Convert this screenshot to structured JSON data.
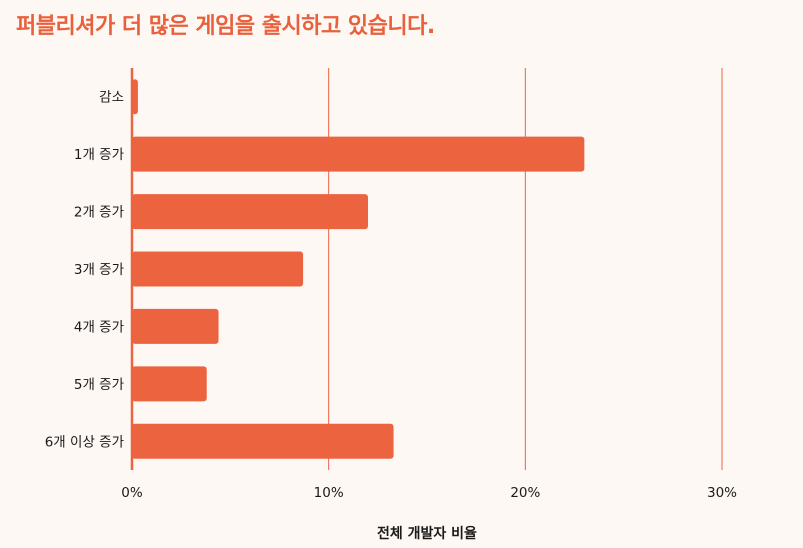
{
  "colors": {
    "accent": "#EC6340",
    "background": "#FDF8F4",
    "title": "#E8603C",
    "text": "#1a1a1a"
  },
  "chart_data": {
    "type": "bar",
    "orientation": "horizontal",
    "title": "퍼블리셔가 더 많은 게임을 출시하고 있습니다.",
    "xlabel": "전체 개발자 비율",
    "ylabel": "",
    "categories": [
      "감소",
      "1개 증가",
      "2개 증가",
      "3개 증가",
      "4개 증가",
      "5개 증가",
      "6개 이상 증가"
    ],
    "values": [
      0.3,
      23,
      12,
      8.7,
      4.4,
      3.8,
      13.3
    ],
    "xlim": [
      0,
      30
    ],
    "xticks": [
      0,
      10,
      20,
      30
    ],
    "xtick_labels": [
      "0%",
      "10%",
      "20%",
      "30%"
    ],
    "grid": true,
    "legend": "none"
  }
}
